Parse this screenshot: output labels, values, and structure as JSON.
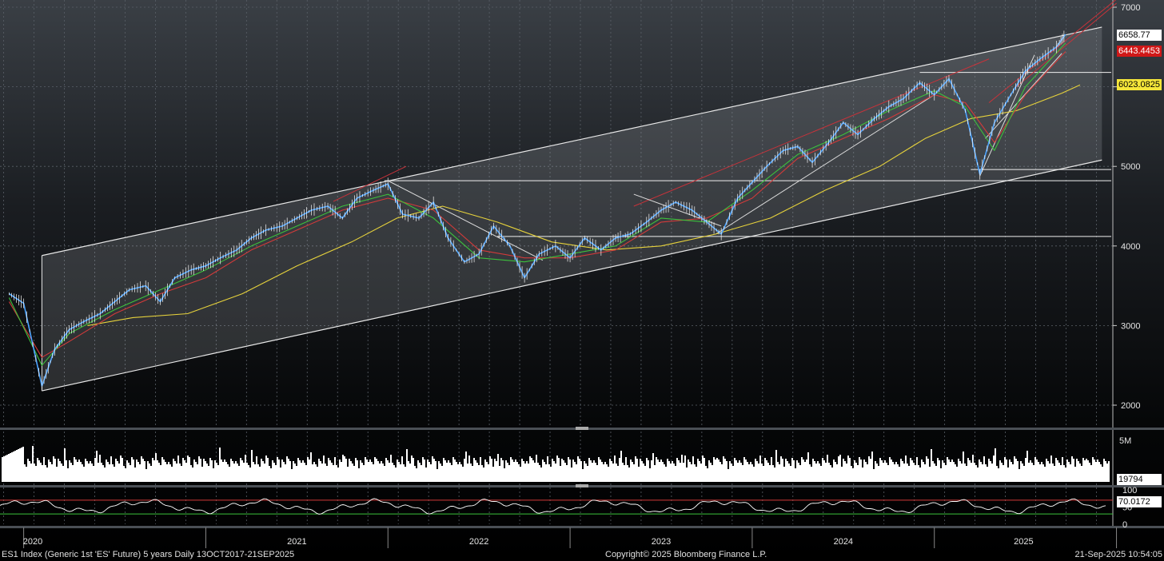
{
  "footer": {
    "left": "ES1 Index (Generic 1st 'ES' Future) 5 years  Daily 13OCT2017-21SEP2025",
    "center": "Copyright© 2025 Bloomberg Finance L.P.",
    "right": "21-Sep-2025 10:54:05"
  },
  "badges": {
    "last": "6658.77",
    "red": "6443.4453",
    "yellow": "6023.0825",
    "volume": "19794",
    "rsi": "70.0172"
  },
  "colors": {
    "price": "#4aa3ff",
    "ma_red": "#d23a3a",
    "ma_green": "#3cc13c",
    "ma_yellow": "#e6d23c",
    "volume": "#ffffff",
    "rsi": "#ffffff",
    "rsi_upper": "#d23a3a",
    "rsi_lower": "#3cc13c"
  },
  "chart_data": [
    {
      "type": "line",
      "x_labels": [
        "2020",
        "2021",
        "2022",
        "2023",
        "2024",
        "2025"
      ],
      "ylim": [
        1950,
        7050
      ],
      "y_ticks": [
        2000,
        3000,
        4000,
        5000,
        6000,
        7000
      ],
      "series": [
        {
          "values": [
            [
              2019.92,
              3400
            ],
            [
              2020.0,
              3280
            ],
            [
              2020.1,
              2240
            ],
            [
              2020.17,
              2700
            ],
            [
              2020.25,
              2950
            ],
            [
              2020.33,
              3050
            ],
            [
              2020.42,
              3150
            ],
            [
              2020.5,
              3300
            ],
            [
              2020.58,
              3450
            ],
            [
              2020.67,
              3500
            ],
            [
              2020.75,
              3300
            ],
            [
              2020.83,
              3600
            ],
            [
              2020.92,
              3700
            ],
            [
              2021.0,
              3750
            ],
            [
              2021.08,
              3850
            ],
            [
              2021.17,
              3950
            ],
            [
              2021.25,
              4100
            ],
            [
              2021.33,
              4200
            ],
            [
              2021.42,
              4250
            ],
            [
              2021.5,
              4350
            ],
            [
              2021.58,
              4450
            ],
            [
              2021.67,
              4500
            ],
            [
              2021.75,
              4350
            ],
            [
              2021.83,
              4600
            ],
            [
              2021.92,
              4700
            ],
            [
              2022.0,
              4780
            ],
            [
              2022.08,
              4400
            ],
            [
              2022.17,
              4350
            ],
            [
              2022.25,
              4550
            ],
            [
              2022.33,
              4100
            ],
            [
              2022.42,
              3800
            ],
            [
              2022.5,
              3900
            ],
            [
              2022.58,
              4250
            ],
            [
              2022.67,
              4000
            ],
            [
              2022.75,
              3600
            ],
            [
              2022.83,
              3900
            ],
            [
              2022.92,
              4000
            ],
            [
              2023.0,
              3850
            ],
            [
              2023.08,
              4100
            ],
            [
              2023.17,
              3950
            ],
            [
              2023.25,
              4100
            ],
            [
              2023.33,
              4150
            ],
            [
              2023.42,
              4300
            ],
            [
              2023.5,
              4450
            ],
            [
              2023.58,
              4550
            ],
            [
              2023.67,
              4450
            ],
            [
              2023.75,
              4300
            ],
            [
              2023.83,
              4150
            ],
            [
              2023.92,
              4600
            ],
            [
              2024.0,
              4800
            ],
            [
              2024.08,
              5000
            ],
            [
              2024.17,
              5200
            ],
            [
              2024.25,
              5250
            ],
            [
              2024.33,
              5050
            ],
            [
              2024.42,
              5300
            ],
            [
              2024.5,
              5550
            ],
            [
              2024.58,
              5400
            ],
            [
              2024.67,
              5600
            ],
            [
              2024.75,
              5750
            ],
            [
              2024.83,
              5850
            ],
            [
              2024.92,
              6050
            ],
            [
              2025.0,
              5900
            ],
            [
              2025.08,
              6100
            ],
            [
              2025.17,
              5700
            ],
            [
              2025.25,
              4900
            ],
            [
              2025.33,
              5550
            ],
            [
              2025.42,
              5900
            ],
            [
              2025.5,
              6200
            ],
            [
              2025.58,
              6350
            ],
            [
              2025.67,
              6500
            ],
            [
              2025.72,
              6659
            ]
          ]
        },
        {
          "values": [
            [
              2019.92,
              3300
            ],
            [
              2020.1,
              2600
            ],
            [
              2020.25,
              2800
            ],
            [
              2020.5,
              3150
            ],
            [
              2020.75,
              3400
            ],
            [
              2021.0,
              3600
            ],
            [
              2021.25,
              3950
            ],
            [
              2021.5,
              4200
            ],
            [
              2021.75,
              4450
            ],
            [
              2022.0,
              4600
            ],
            [
              2022.25,
              4450
            ],
            [
              2022.5,
              3950
            ],
            [
              2022.75,
              3850
            ],
            [
              2023.0,
              3850
            ],
            [
              2023.25,
              3950
            ],
            [
              2023.5,
              4300
            ],
            [
              2023.75,
              4350
            ],
            [
              2024.0,
              4600
            ],
            [
              2024.25,
              5100
            ],
            [
              2024.5,
              5350
            ],
            [
              2024.75,
              5600
            ],
            [
              2025.0,
              5900
            ],
            [
              2025.17,
              5800
            ],
            [
              2025.33,
              5300
            ],
            [
              2025.5,
              5900
            ],
            [
              2025.72,
              6443
            ]
          ]
        },
        {
          "values": [
            [
              2019.92,
              3350
            ],
            [
              2020.1,
              2500
            ],
            [
              2020.25,
              2900
            ],
            [
              2020.5,
              3200
            ],
            [
              2020.75,
              3450
            ],
            [
              2021.0,
              3700
            ],
            [
              2021.25,
              4000
            ],
            [
              2021.5,
              4250
            ],
            [
              2021.75,
              4500
            ],
            [
              2022.0,
              4650
            ],
            [
              2022.25,
              4350
            ],
            [
              2022.5,
              3850
            ],
            [
              2022.75,
              3800
            ],
            [
              2023.0,
              3900
            ],
            [
              2023.25,
              4000
            ],
            [
              2023.5,
              4350
            ],
            [
              2023.75,
              4300
            ],
            [
              2024.0,
              4700
            ],
            [
              2024.25,
              5150
            ],
            [
              2024.5,
              5400
            ],
            [
              2024.75,
              5700
            ],
            [
              2025.0,
              5950
            ],
            [
              2025.17,
              5750
            ],
            [
              2025.33,
              5200
            ],
            [
              2025.5,
              6000
            ],
            [
              2025.72,
              6550
            ]
          ]
        },
        {
          "values": [
            [
              2020.35,
              3000
            ],
            [
              2020.6,
              3100
            ],
            [
              2020.9,
              3150
            ],
            [
              2021.2,
              3400
            ],
            [
              2021.5,
              3750
            ],
            [
              2021.8,
              4050
            ],
            [
              2022.05,
              4350
            ],
            [
              2022.3,
              4500
            ],
            [
              2022.6,
              4300
            ],
            [
              2022.9,
              4050
            ],
            [
              2023.2,
              3950
            ],
            [
              2023.5,
              4000
            ],
            [
              2023.8,
              4150
            ],
            [
              2024.1,
              4350
            ],
            [
              2024.4,
              4700
            ],
            [
              2024.7,
              5000
            ],
            [
              2024.95,
              5350
            ],
            [
              2025.2,
              5600
            ],
            [
              2025.45,
              5700
            ],
            [
              2025.7,
              5920
            ],
            [
              2025.8,
              6023
            ]
          ]
        }
      ],
      "annotations": {
        "channel_upper": [
          [
            2020.1,
            3880
          ],
          [
            2025.92,
            6750
          ]
        ],
        "channel_lower": [
          [
            2020.1,
            2180
          ],
          [
            2025.92,
            5080
          ]
        ],
        "horizontal_levels": [
          6180,
          4820,
          4960,
          4120
        ]
      }
    },
    {
      "type": "bar",
      "y_ticks": [
        "5M"
      ],
      "last_value": 19794
    },
    {
      "type": "line",
      "y_ticks": [
        0,
        50,
        100
      ],
      "ylim": [
        0,
        100
      ],
      "guides": [
        70,
        30
      ],
      "last_value": 70.0172
    }
  ]
}
